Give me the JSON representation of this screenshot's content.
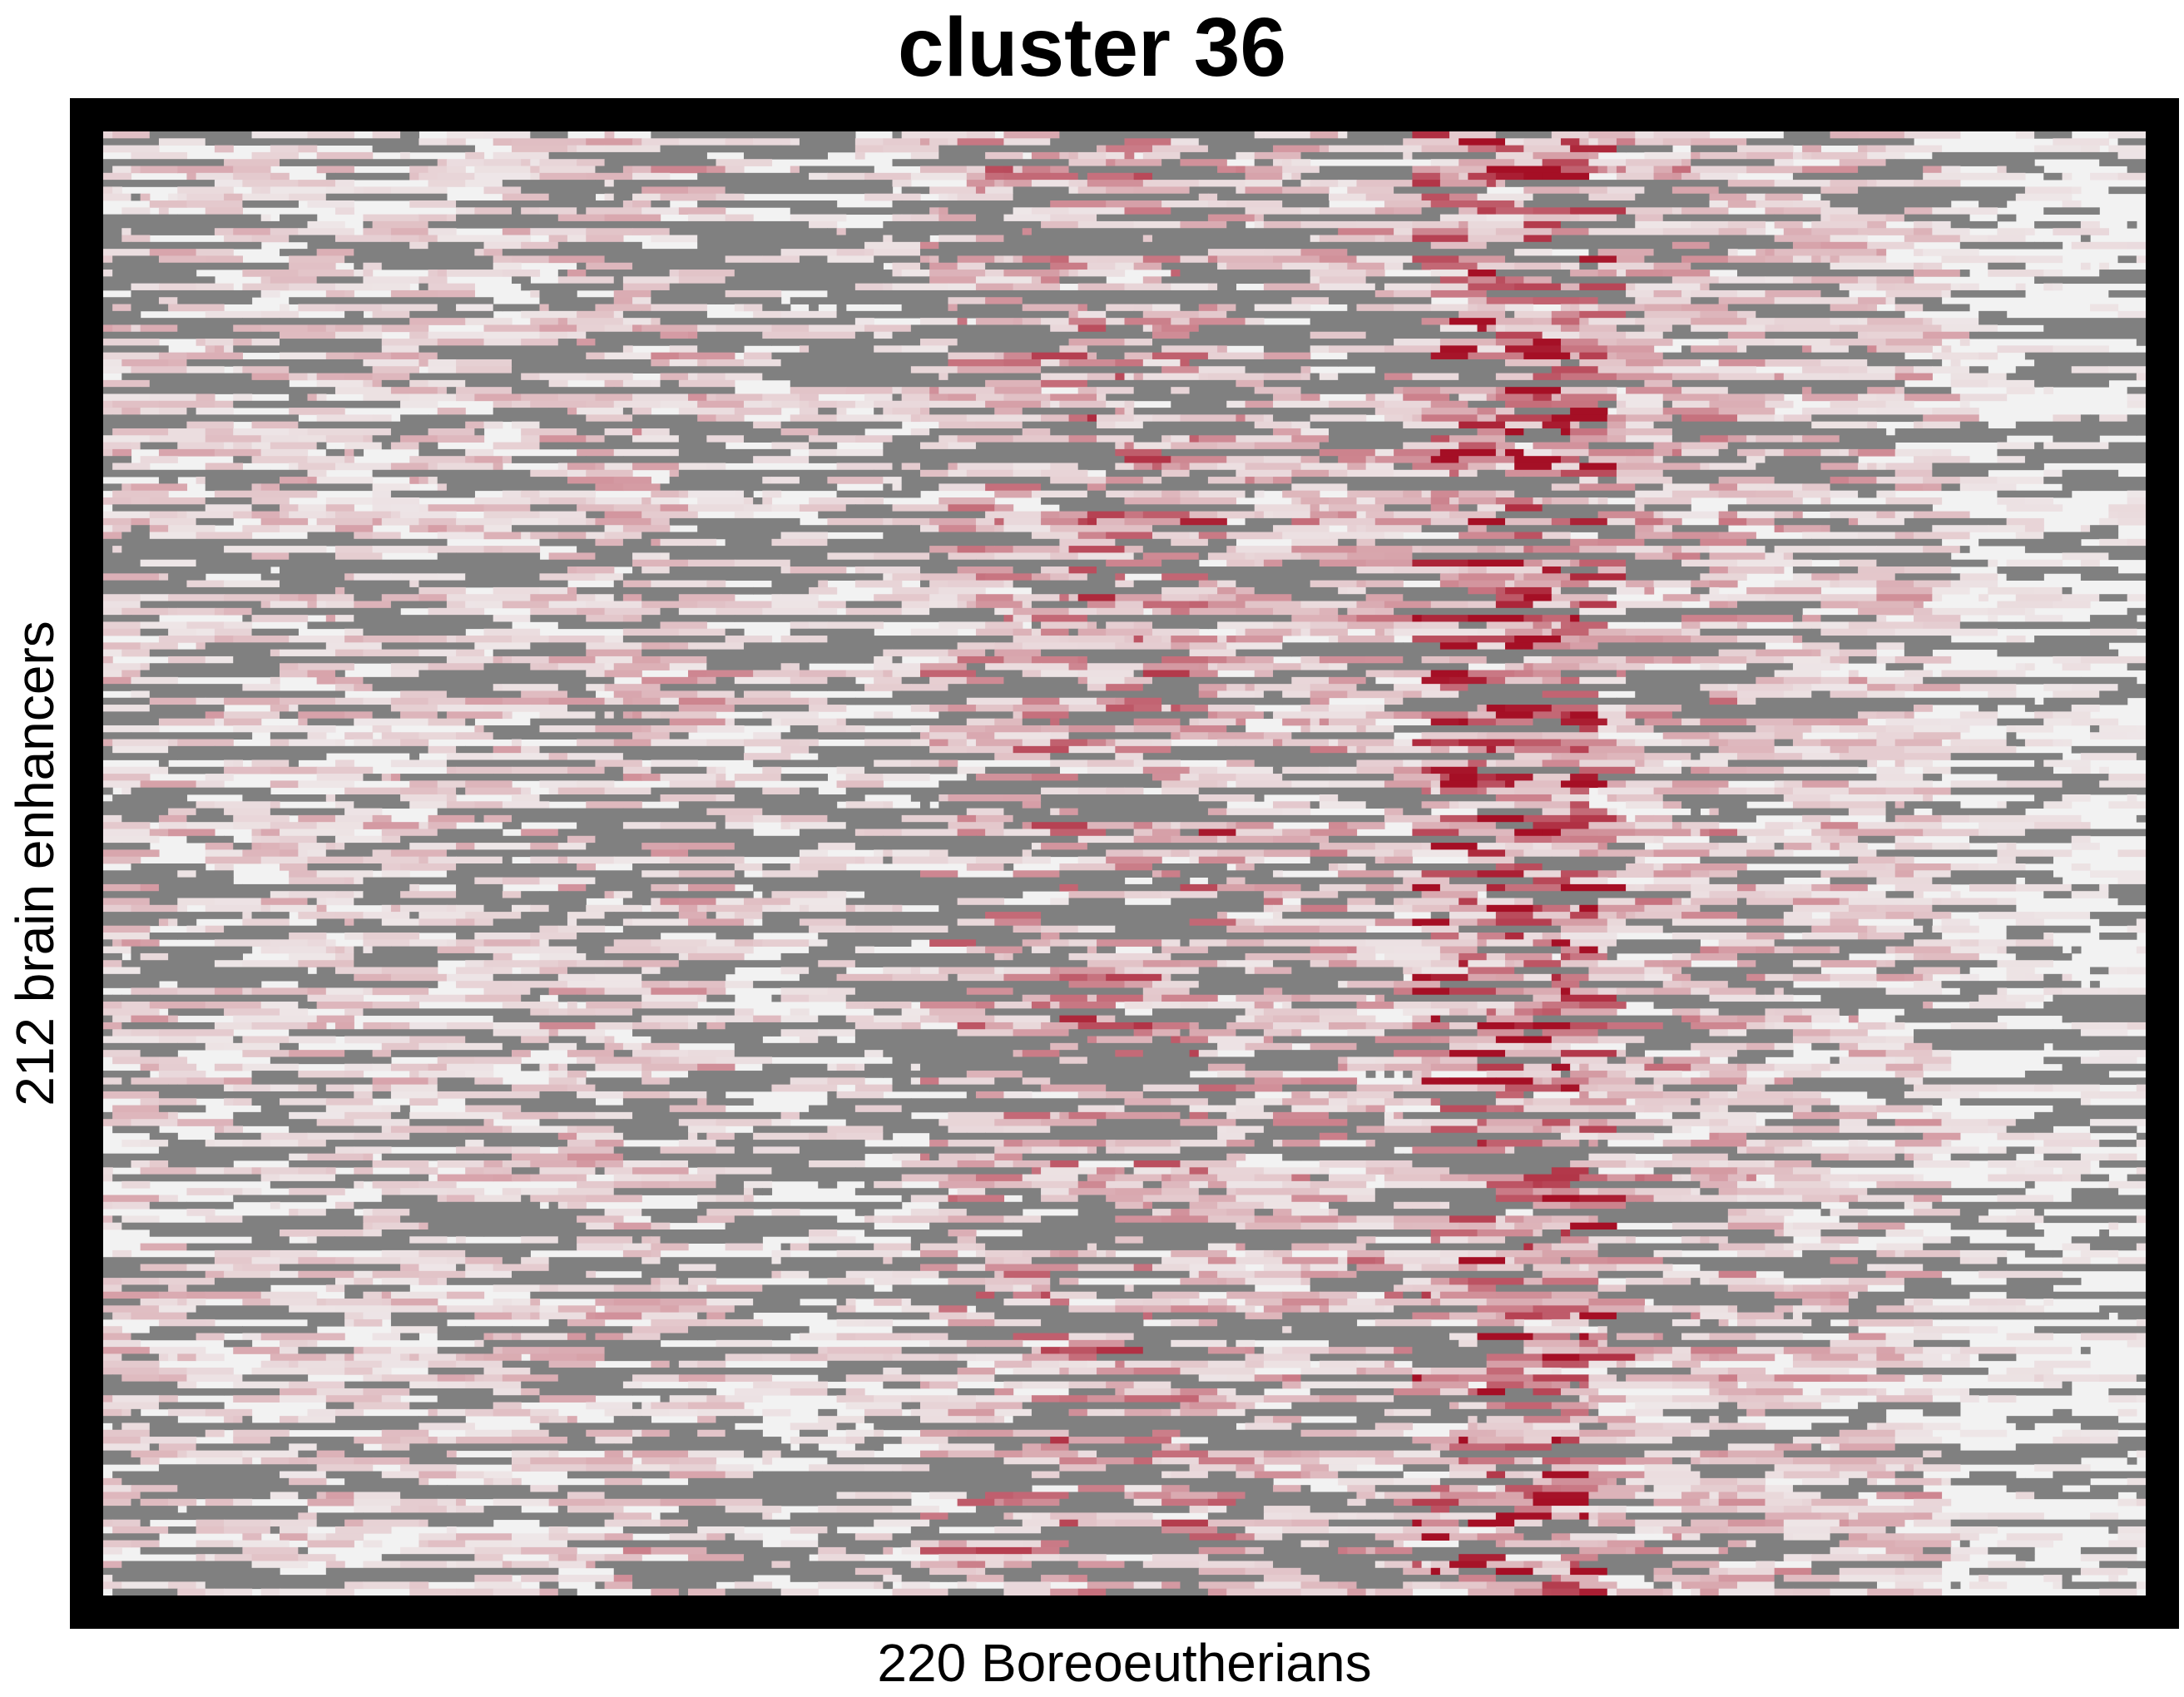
{
  "chart_data": {
    "type": "heatmap",
    "title": "cluster 36",
    "xlabel": "220 Boreoeutherians",
    "ylabel": "212 brain enhancers",
    "n_columns": 220,
    "n_rows": 212,
    "colors": {
      "background": "#f2f2f2",
      "missing": "#808080",
      "high": "#a50f25",
      "frame": "#000000"
    },
    "column_profile": {
      "description_free_bands": [
        {
          "col_start": 0,
          "col_end": 6,
          "red_level": 0.25,
          "missing_rate": 0.35
        },
        {
          "col_start": 6,
          "col_end": 47,
          "red_level": 0.22,
          "missing_rate": 0.18
        },
        {
          "col_start": 47,
          "col_end": 66,
          "red_level": 0.3,
          "missing_rate": 0.28
        },
        {
          "col_start": 66,
          "col_end": 88,
          "red_level": 0.15,
          "missing_rate": 0.3
        },
        {
          "col_start": 88,
          "col_end": 100,
          "red_level": 0.45,
          "missing_rate": 0.2
        },
        {
          "col_start": 100,
          "col_end": 120,
          "red_level": 0.55,
          "missing_rate": 0.28
        },
        {
          "col_start": 120,
          "col_end": 141,
          "red_level": 0.35,
          "missing_rate": 0.2
        },
        {
          "col_start": 141,
          "col_end": 160,
          "red_level": 0.85,
          "missing_rate": 0.12
        },
        {
          "col_start": 160,
          "col_end": 175,
          "red_level": 0.35,
          "missing_rate": 0.2
        },
        {
          "col_start": 175,
          "col_end": 197,
          "red_level": 0.28,
          "missing_rate": 0.14
        },
        {
          "col_start": 197,
          "col_end": 220,
          "red_level": 0.08,
          "missing_rate": 0.18
        }
      ]
    }
  }
}
